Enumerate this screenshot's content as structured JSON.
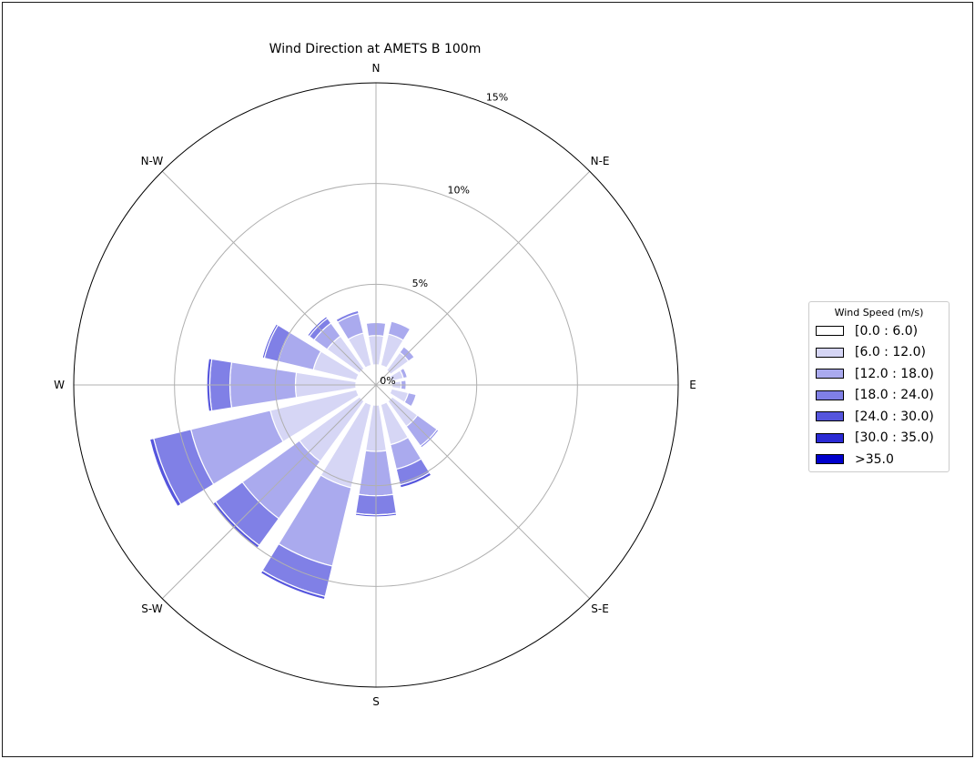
{
  "chart_data": {
    "type": "windrose",
    "title": "Wind Direction at AMETS B 100m",
    "directions": [
      "N",
      "NNE",
      "N-E",
      "ENE",
      "E",
      "ESE",
      "S-E",
      "SSE",
      "S",
      "SSW",
      "S-W",
      "WSW",
      "W",
      "WNW",
      "N-W",
      "NNW"
    ],
    "direction_labels": [
      {
        "label": "N",
        "angle_deg": 0
      },
      {
        "label": "N-E",
        "angle_deg": 45
      },
      {
        "label": "E",
        "angle_deg": 90
      },
      {
        "label": "S-E",
        "angle_deg": 135
      },
      {
        "label": "S",
        "angle_deg": 180
      },
      {
        "label": "S-W",
        "angle_deg": 225
      },
      {
        "label": "W",
        "angle_deg": 270
      },
      {
        "label": "N-W",
        "angle_deg": 315
      }
    ],
    "radial_ticks": [
      {
        "value": 0,
        "label": "0%"
      },
      {
        "value": 5,
        "label": "5%"
      },
      {
        "value": 10,
        "label": "10%"
      },
      {
        "value": 15,
        "label": "15%"
      }
    ],
    "rmax": 15,
    "unit": "%",
    "legend": {
      "title": "Wind Speed (m/s)",
      "placement": "right",
      "bins": [
        {
          "label": "[0.0 : 6.0)",
          "color": "#ffffff"
        },
        {
          "label": "[6.0 : 12.0)",
          "color": "#d6d6f5"
        },
        {
          "label": "[12.0 : 18.0)",
          "color": "#aaaaee"
        },
        {
          "label": "[18.0 : 24.0)",
          "color": "#8080e6"
        },
        {
          "label": "[24.0 : 30.0)",
          "color": "#5555dd"
        },
        {
          "label": "[30.0 : 35.0)",
          "color": "#2a2ad4"
        },
        {
          "label": ">35.0",
          "color": "#0000cc"
        }
      ]
    },
    "series": [
      {
        "direction": "N",
        "values": [
          1.0,
          1.45,
          0.65,
          0.0,
          0.0,
          0.0,
          0.0
        ]
      },
      {
        "direction": "NNE",
        "values": [
          1.0,
          1.6,
          0.65,
          0.0,
          0.0,
          0.0,
          0.0
        ]
      },
      {
        "direction": "N-E",
        "values": [
          0.9,
          1.1,
          0.35,
          0.0,
          0.0,
          0.0,
          0.0
        ]
      },
      {
        "direction": "ENE",
        "values": [
          0.8,
          0.6,
          0.2,
          0.0,
          0.0,
          0.0,
          0.0
        ]
      },
      {
        "direction": "E",
        "values": [
          0.8,
          0.45,
          0.25,
          0.0,
          0.0,
          0.0,
          0.0
        ]
      },
      {
        "direction": "ESE",
        "values": [
          0.8,
          0.85,
          0.4,
          0.0,
          0.0,
          0.0,
          0.0
        ]
      },
      {
        "direction": "S-E",
        "values": [
          1.0,
          1.55,
          1.2,
          0.1,
          0.05,
          0.0,
          0.0
        ]
      },
      {
        "direction": "SSE",
        "values": [
          1.0,
          2.05,
          1.25,
          0.8,
          0.15,
          0.0,
          0.0
        ]
      },
      {
        "direction": "S",
        "values": [
          1.0,
          2.3,
          2.2,
          0.95,
          0.1,
          0.0,
          0.0
        ]
      },
      {
        "direction": "SSW",
        "values": [
          1.0,
          4.25,
          4.0,
          1.55,
          0.15,
          0.0,
          0.0
        ]
      },
      {
        "direction": "S-W",
        "values": [
          1.0,
          3.7,
          3.5,
          1.65,
          0.15,
          0.0,
          0.0
        ]
      },
      {
        "direction": "WSW",
        "values": [
          1.0,
          4.4,
          4.05,
          1.9,
          0.2,
          0.0,
          0.0
        ]
      },
      {
        "direction": "W",
        "values": [
          1.0,
          3.0,
          3.25,
          1.0,
          0.15,
          0.0,
          0.0
        ]
      },
      {
        "direction": "WNW",
        "values": [
          1.0,
          2.2,
          1.8,
          0.7,
          0.1,
          0.0,
          0.0
        ]
      },
      {
        "direction": "N-W",
        "values": [
          1.0,
          2.0,
          0.8,
          0.3,
          0.1,
          0.0,
          0.0
        ]
      },
      {
        "direction": "NNW",
        "values": [
          1.0,
          1.65,
          1.0,
          0.15,
          0.05,
          0.0,
          0.0
        ]
      }
    ],
    "grid": true
  }
}
